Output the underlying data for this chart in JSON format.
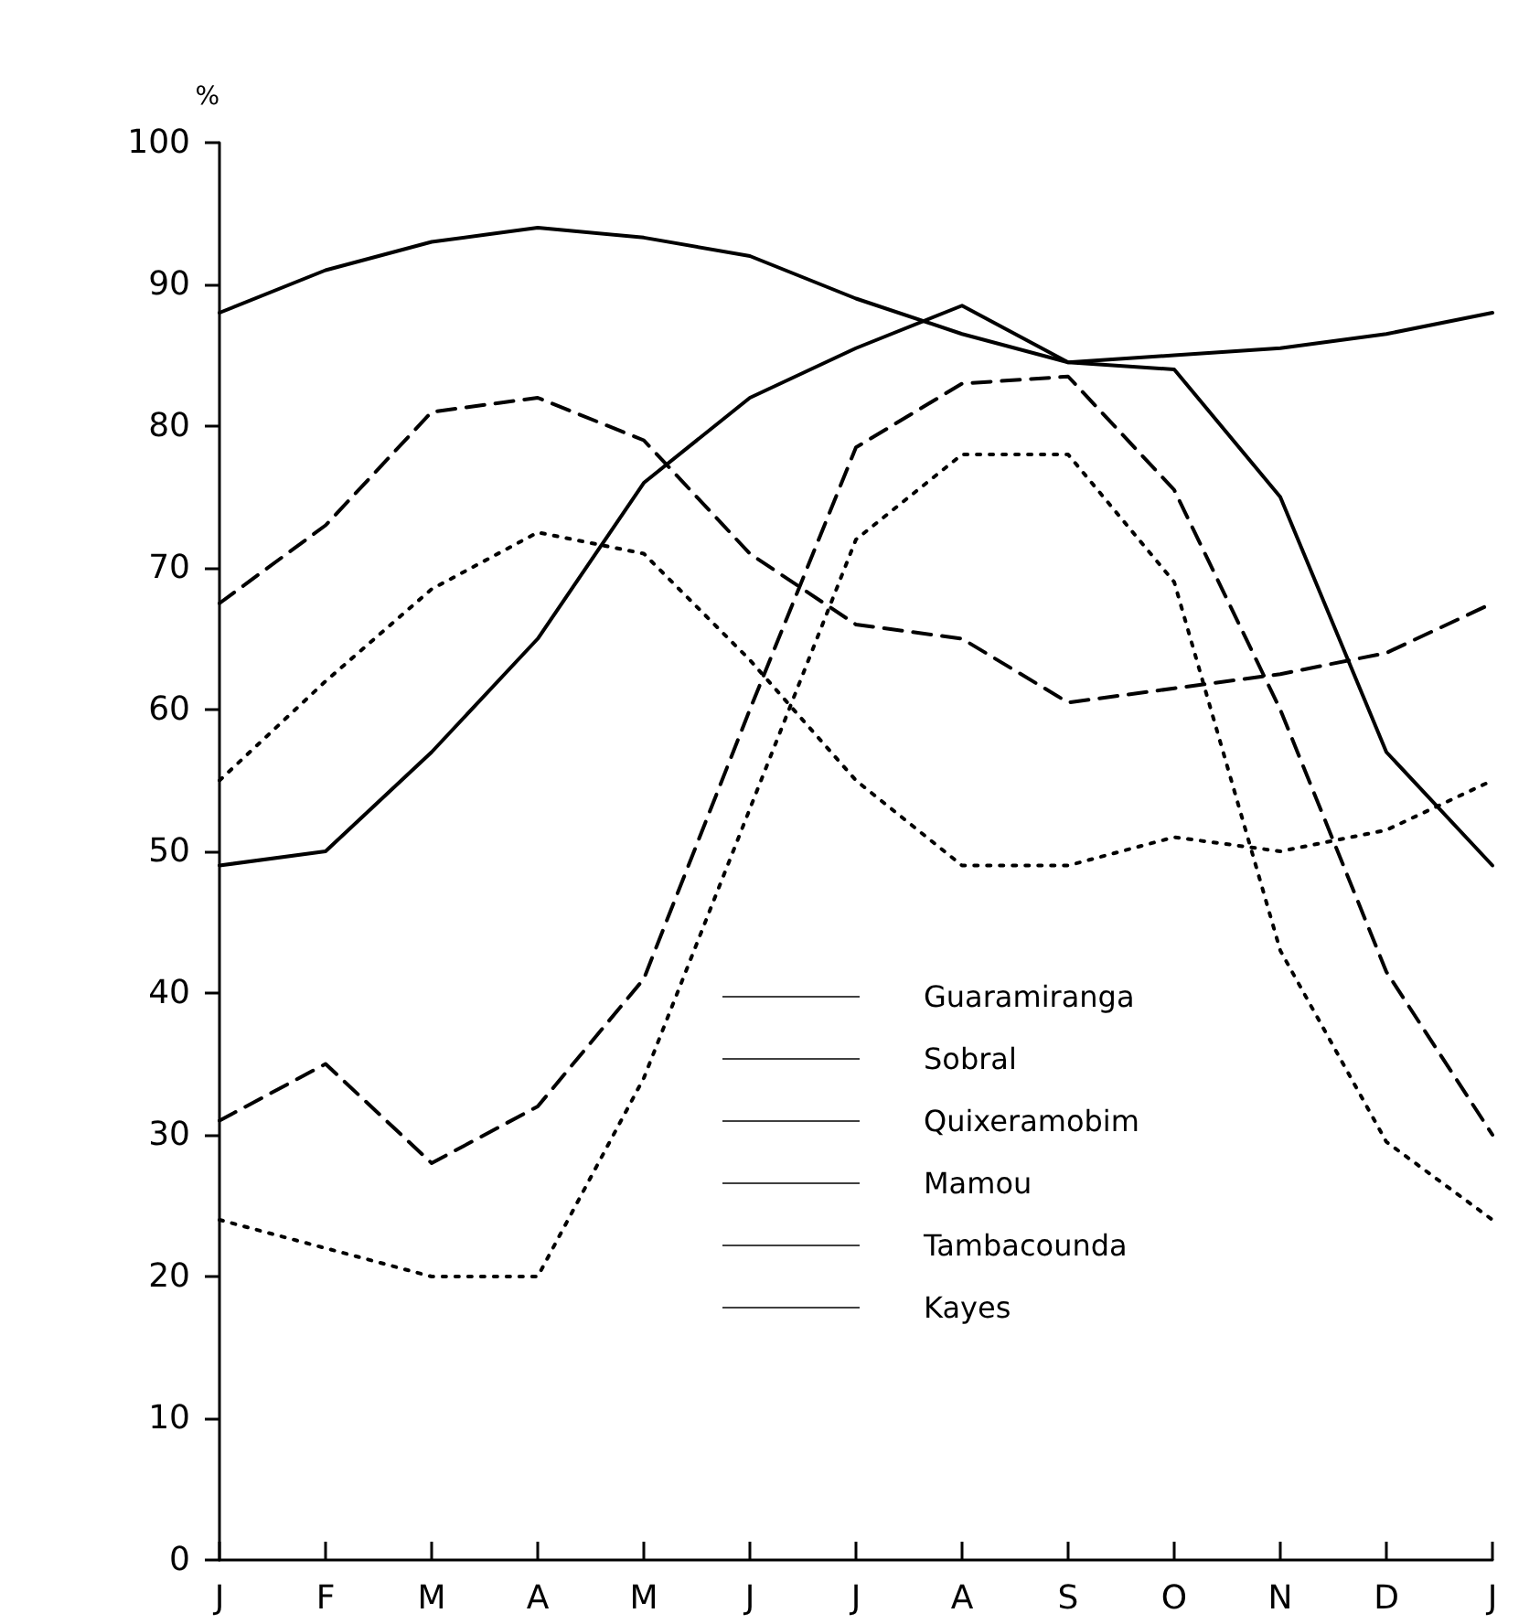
{
  "chart_data": {
    "type": "line",
    "ylabel": "%",
    "categories": [
      "J",
      "F",
      "M",
      "A",
      "M",
      "J",
      "J",
      "A",
      "S",
      "O",
      "N",
      "D",
      "J"
    ],
    "series": [
      {
        "name": "Guaramiranga",
        "color": "#000000",
        "line_style": "solid",
        "values": [
          88,
          91,
          93,
          94,
          93.3,
          92,
          89,
          86.5,
          84.5,
          85,
          85.5,
          86.5,
          88
        ]
      },
      {
        "name": "Sobral",
        "color": "#000000",
        "line_style": "dashed",
        "values": [
          67.5,
          73,
          81,
          82,
          79,
          71,
          66,
          65,
          60.5,
          61.5,
          62.5,
          64,
          67.5
        ]
      },
      {
        "name": "Quixeramobim",
        "color": "#000000",
        "line_style": "dotted",
        "values": [
          55,
          62,
          68.5,
          72.5,
          71,
          63.5,
          55,
          49,
          49,
          51,
          50,
          51.5,
          55
        ]
      },
      {
        "name": "Mamou",
        "color": "#000000",
        "line_style": "solid",
        "values": [
          49,
          50,
          57,
          65,
          76,
          82,
          85.5,
          88.5,
          84.5,
          84,
          75,
          57,
          49
        ]
      },
      {
        "name": "Tambacounda",
        "color": "#000000",
        "line_style": "dashed",
        "values": [
          31,
          35,
          28,
          32,
          41,
          60,
          78.5,
          83,
          83.5,
          75.5,
          60,
          41.5,
          30
        ]
      },
      {
        "name": "Kayes",
        "color": "#000000",
        "line_style": "dotted",
        "values": [
          24,
          22,
          20,
          20,
          34,
          53,
          72,
          78,
          78,
          69,
          43,
          29.5,
          24
        ]
      }
    ],
    "ylim": [
      0,
      100
    ],
    "yticks": [
      0,
      10,
      20,
      30,
      40,
      50,
      60,
      70,
      80,
      90,
      100
    ],
    "grid": false,
    "legend": "bottom",
    "marker": "none"
  }
}
